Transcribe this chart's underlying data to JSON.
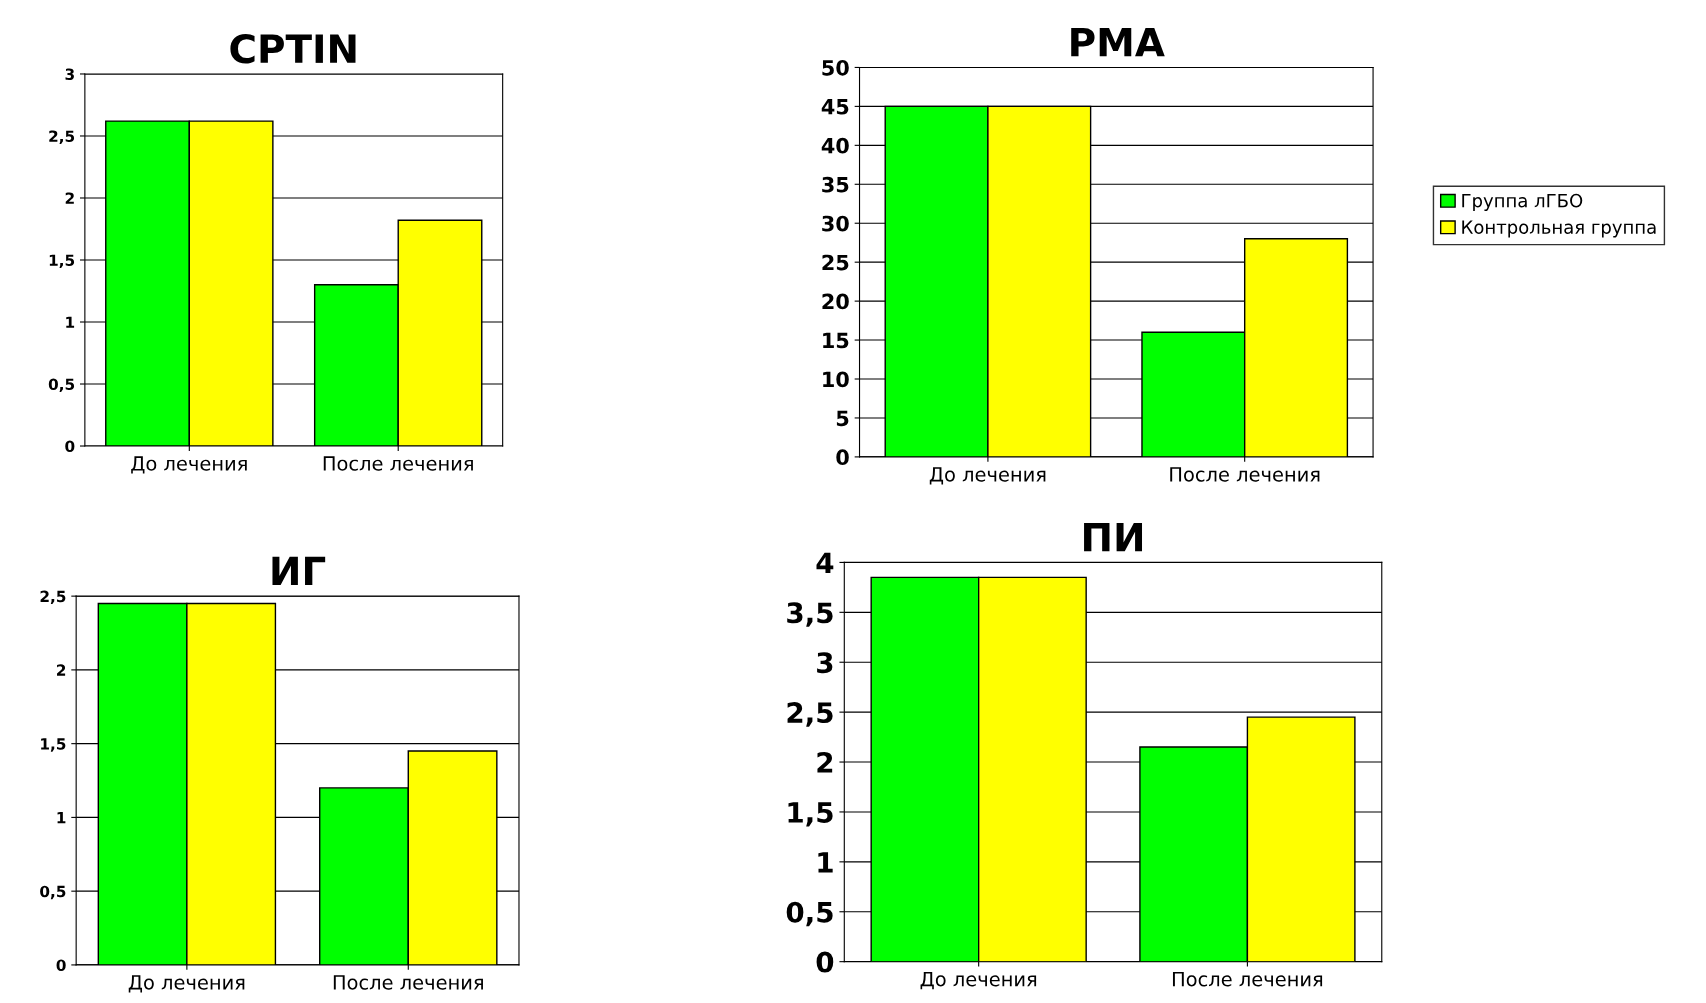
{
  "chart_data": [
    {
      "type": "bar",
      "title": "CPTIN",
      "categories": [
        "До лечения",
        "После лечения"
      ],
      "series": [
        {
          "color": "#00ff00",
          "values": [
            2.62,
            1.3
          ]
        },
        {
          "color": "#ffff00",
          "values": [
            2.62,
            1.82
          ]
        }
      ],
      "ylim": [
        0,
        3
      ],
      "yticks": [
        0,
        {
          "value": 0.5,
          "label": "0,5"
        },
        1,
        {
          "value": 1.5,
          "label": "1,5"
        },
        2,
        {
          "value": 2.5,
          "label": "2,5"
        },
        3
      ],
      "grid": "y",
      "legend": false
    },
    {
      "type": "bar",
      "title": "PMA",
      "categories": [
        "До лечения",
        "После лечения"
      ],
      "series": [
        {
          "name": "Группа лГБО",
          "color": "#00ff00",
          "values": [
            45,
            16
          ]
        },
        {
          "name": "Контрольная группа",
          "color": "#ffff00",
          "values": [
            45,
            28
          ]
        }
      ],
      "ylim": [
        0,
        50
      ],
      "yticks": [
        0,
        5,
        10,
        15,
        20,
        25,
        30,
        35,
        40,
        45,
        50
      ],
      "grid": "y",
      "legend": "right"
    },
    {
      "type": "bar",
      "title": "ИГ",
      "categories": [
        "До лечения",
        "После лечения"
      ],
      "series": [
        {
          "color": "#00ff00",
          "values": [
            2.45,
            1.2
          ]
        },
        {
          "color": "#ffff00",
          "values": [
            2.45,
            1.45
          ]
        }
      ],
      "ylim": [
        0,
        2.5
      ],
      "yticks": [
        0,
        {
          "value": 0.5,
          "label": "0,5"
        },
        1,
        {
          "value": 1.5,
          "label": "1,5"
        },
        2,
        {
          "value": 2.5,
          "label": "2,5"
        }
      ],
      "grid": "y",
      "legend": false
    },
    {
      "type": "bar",
      "title": "ПИ",
      "categories": [
        "До лечения",
        "После лечения"
      ],
      "series": [
        {
          "color": "#00ff00",
          "values": [
            3.85,
            2.15
          ]
        },
        {
          "color": "#ffff00",
          "values": [
            3.85,
            2.45
          ]
        }
      ],
      "ylim": [
        0,
        4
      ],
      "yticks": [
        0,
        {
          "value": 0.5,
          "label": "0,5"
        },
        1,
        {
          "value": 1.5,
          "label": "1,5"
        },
        2,
        {
          "value": 2.5,
          "label": "2,5"
        },
        3,
        {
          "value": 3.5,
          "label": "3,5"
        },
        4
      ],
      "grid": "y",
      "legend": false
    }
  ]
}
